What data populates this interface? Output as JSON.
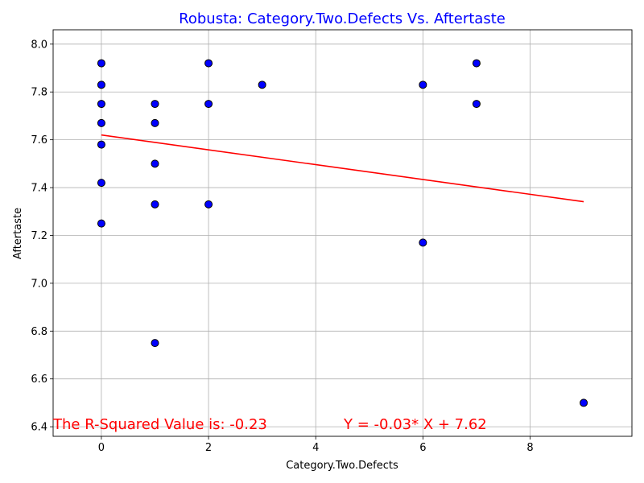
{
  "chart_data": {
    "type": "scatter",
    "title": "Robusta: Category.Two.Defects Vs. Aftertaste",
    "xlabel": "Category.Two.Defects",
    "ylabel": "Aftertaste",
    "xlim": [
      -0.9,
      9.9
    ],
    "ylim": [
      6.36,
      8.06
    ],
    "x_ticks": [
      0,
      2,
      4,
      6,
      8
    ],
    "y_ticks": [
      6.4,
      6.6,
      6.8,
      7.0,
      7.2,
      7.4,
      7.6,
      7.8,
      8.0
    ],
    "x_tick_labels": [
      "0",
      "2",
      "4",
      "6",
      "8"
    ],
    "y_tick_labels": [
      "6.4",
      "6.6",
      "6.8",
      "7.0",
      "7.2",
      "7.4",
      "7.6",
      "7.8",
      "8.0"
    ],
    "grid": true,
    "points": [
      {
        "x": 0,
        "y": 7.92
      },
      {
        "x": 0,
        "y": 7.83
      },
      {
        "x": 0,
        "y": 7.75
      },
      {
        "x": 0,
        "y": 7.67
      },
      {
        "x": 0,
        "y": 7.58
      },
      {
        "x": 0,
        "y": 7.42
      },
      {
        "x": 0,
        "y": 7.25
      },
      {
        "x": 1,
        "y": 7.75
      },
      {
        "x": 1,
        "y": 7.67
      },
      {
        "x": 1,
        "y": 7.5
      },
      {
        "x": 1,
        "y": 7.33
      },
      {
        "x": 1,
        "y": 6.75
      },
      {
        "x": 2,
        "y": 7.92
      },
      {
        "x": 2,
        "y": 7.75
      },
      {
        "x": 2,
        "y": 7.33
      },
      {
        "x": 3,
        "y": 7.83
      },
      {
        "x": 6,
        "y": 7.83
      },
      {
        "x": 6,
        "y": 7.17
      },
      {
        "x": 7,
        "y": 7.92
      },
      {
        "x": 7,
        "y": 7.75
      },
      {
        "x": 9,
        "y": 6.5
      }
    ],
    "regression": {
      "slope": -0.031,
      "intercept": 7.62,
      "x_range": [
        0,
        9
      ]
    },
    "annotations": {
      "r_squared": "The R-Squared Value is: -0.23",
      "equation": "Y = -0.03* X + 7.62"
    },
    "colors": {
      "title": "#0000ff",
      "point_fill": "#0000ff",
      "point_edge": "#000000",
      "line": "#ff0000",
      "annotation": "#ff0000",
      "grid": "#b0b0b0"
    }
  }
}
